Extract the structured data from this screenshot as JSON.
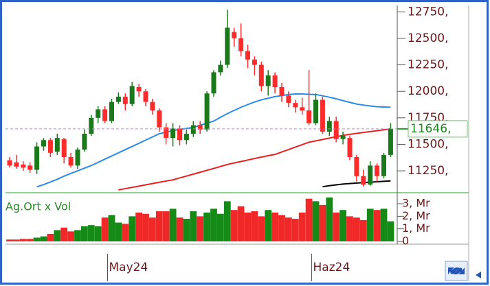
{
  "chart_data": {
    "type": "candlestick",
    "categories": [
      null,
      null,
      null,
      null,
      null,
      null,
      null,
      null,
      null,
      null,
      null,
      null,
      null,
      null,
      null,
      "May24",
      null,
      null,
      null,
      null,
      null,
      null,
      null,
      null,
      null,
      null,
      null,
      null,
      null,
      null,
      null,
      null,
      null,
      null,
      null,
      null,
      null,
      null,
      null,
      null,
      null,
      null,
      null,
      null,
      null,
      "Haz24",
      null,
      null,
      null,
      null,
      null,
      null,
      null,
      null,
      null,
      null,
      null
    ],
    "open": [
      11350,
      11330,
      11310,
      11300,
      11260,
      11480,
      11540,
      11430,
      11550,
      11380,
      11300,
      11450,
      11600,
      11750,
      11830,
      11720,
      11900,
      11950,
      11880,
      12040,
      12000,
      11900,
      11820,
      11660,
      11560,
      11650,
      11540,
      11600,
      11680,
      11640,
      11980,
      12180,
      12250,
      12560,
      12500,
      12380,
      12300,
      12250,
      12050,
      12150,
      12040,
      11960,
      11890,
      11850,
      11820,
      11700,
      11920,
      11620,
      11720,
      11550,
      11560,
      11380,
      11200,
      11120,
      11300,
      11200,
      11400
    ],
    "high": [
      11380,
      11400,
      11340,
      11330,
      11520,
      11560,
      11560,
      11600,
      11560,
      11420,
      11470,
      11640,
      11780,
      11860,
      11860,
      11930,
      11990,
      11980,
      12090,
      12070,
      12020,
      11930,
      11840,
      11700,
      11700,
      11680,
      11640,
      11720,
      11720,
      12000,
      12200,
      12290,
      12770,
      12600,
      12640,
      12440,
      12330,
      12280,
      12200,
      12180,
      12080,
      12000,
      11920,
      11940,
      12200,
      11980,
      11950,
      11760,
      11760,
      11620,
      11580,
      11400,
      11260,
      11340,
      11320,
      11420,
      11700
    ],
    "low": [
      11280,
      11270,
      11250,
      11230,
      11220,
      11440,
      11380,
      11400,
      11320,
      11280,
      11270,
      11430,
      11580,
      11700,
      11700,
      11700,
      11880,
      11820,
      11860,
      11950,
      11860,
      11780,
      11620,
      11500,
      11480,
      11490,
      11500,
      11570,
      11600,
      11620,
      11950,
      12150,
      12220,
      12420,
      12330,
      12220,
      12150,
      12000,
      11960,
      11980,
      11900,
      11850,
      11800,
      11780,
      11680,
      11680,
      11600,
      11580,
      11520,
      11500,
      11350,
      11150,
      11100,
      11110,
      11150,
      11180,
      11380
    ],
    "close": [
      11300,
      11290,
      11280,
      11260,
      11480,
      11540,
      11420,
      11560,
      11380,
      11300,
      11450,
      11600,
      11750,
      11830,
      11720,
      11900,
      11950,
      11880,
      12050,
      12000,
      11900,
      11820,
      11660,
      11560,
      11650,
      11540,
      11600,
      11680,
      11640,
      11980,
      12180,
      12250,
      12600,
      12500,
      12380,
      12300,
      12250,
      12050,
      12150,
      12040,
      11960,
      11890,
      11850,
      11820,
      11700,
      11920,
      11620,
      11720,
      11550,
      11580,
      11380,
      11200,
      11120,
      11300,
      11200,
      11400,
      11646
    ],
    "up_color": "#1a7a1a",
    "down_color": "#ff2a2a",
    "moving_averages": [
      {
        "color": "#2b8ae8",
        "values": [
          null,
          null,
          null,
          null,
          11100,
          11120,
          11145,
          11170,
          11200,
          11225,
          11250,
          11275,
          11300,
          11330,
          11360,
          11390,
          11420,
          11450,
          11480,
          11510,
          11540,
          11570,
          11600,
          11615,
          11630,
          11640,
          11650,
          11660,
          11680,
          11700,
          11720,
          11755,
          11790,
          11820,
          11850,
          11875,
          11900,
          11920,
          11935,
          11950,
          11960,
          11970,
          11975,
          11975,
          11972,
          11970,
          11958,
          11945,
          11930,
          11912,
          11896,
          11880,
          11870,
          11862,
          11855,
          11852,
          11850
        ]
      },
      {
        "color": "#e82020",
        "values": [
          null,
          null,
          null,
          null,
          null,
          null,
          null,
          null,
          null,
          null,
          null,
          null,
          null,
          null,
          null,
          null,
          11070,
          11082,
          11094,
          11106,
          11118,
          11130,
          11142,
          11154,
          11165,
          11183,
          11201,
          11219,
          11237,
          11255,
          11273,
          11291,
          11310,
          11324,
          11338,
          11352,
          11366,
          11380,
          11393,
          11405,
          11428,
          11451,
          11474,
          11497,
          11520,
          11533,
          11546,
          11559,
          11572,
          11585,
          11594,
          11603,
          11612,
          11620,
          11628,
          11637,
          11645
        ]
      },
      {
        "color": "#000000",
        "values": [
          null,
          null,
          null,
          null,
          null,
          null,
          null,
          null,
          null,
          null,
          null,
          null,
          null,
          null,
          null,
          null,
          null,
          null,
          null,
          null,
          null,
          null,
          null,
          null,
          null,
          null,
          null,
          null,
          null,
          null,
          null,
          null,
          null,
          null,
          null,
          null,
          null,
          null,
          null,
          null,
          null,
          null,
          null,
          null,
          null,
          null,
          11100,
          11110,
          11118,
          11125,
          11130,
          11135,
          11139,
          11143,
          11147,
          11151,
          11155
        ]
      }
    ],
    "ylim": [
      11050,
      12810
    ],
    "yticks": [
      {
        "value": 11250,
        "label": "11250,"
      },
      {
        "value": 11500,
        "label": "11500,"
      },
      {
        "value": 11750,
        "label": "11750,"
      },
      {
        "value": 12000,
        "label": "12000,"
      },
      {
        "value": 12250,
        "label": "12250,"
      },
      {
        "value": 12500,
        "label": "12500,"
      },
      {
        "value": 12750,
        "label": "12750,"
      }
    ],
    "last_price": {
      "value": 11646,
      "label": "11646,"
    },
    "volume_label": "Ag.Ort x Vol",
    "volumes": [
      0.15,
      0.15,
      0.2,
      0.2,
      0.3,
      0.4,
      0.6,
      0.9,
      1.1,
      0.8,
      0.9,
      1.2,
      1.3,
      1.2,
      1.9,
      2.1,
      1.5,
      1.4,
      2.0,
      2.3,
      2.2,
      1.9,
      2.4,
      2.4,
      2.6,
      1.9,
      1.8,
      2.4,
      2.0,
      2.3,
      2.6,
      2.2,
      3.2,
      2.5,
      2.8,
      2.3,
      2.4,
      2.0,
      2.5,
      2.3,
      2.1,
      1.9,
      1.8,
      2.3,
      3.4,
      3.2,
      2.9,
      3.5,
      2.3,
      2.5,
      2.0,
      1.9,
      1.7,
      2.6,
      2.5,
      2.6,
      1.6
    ],
    "vlim": [
      0,
      3.8
    ],
    "vticks": [
      0,
      {
        "value": 1,
        "label": "1, Mr"
      },
      {
        "value": 2,
        "label": "2, Mr"
      },
      {
        "value": 3,
        "label": "3, Mr"
      }
    ]
  }
}
